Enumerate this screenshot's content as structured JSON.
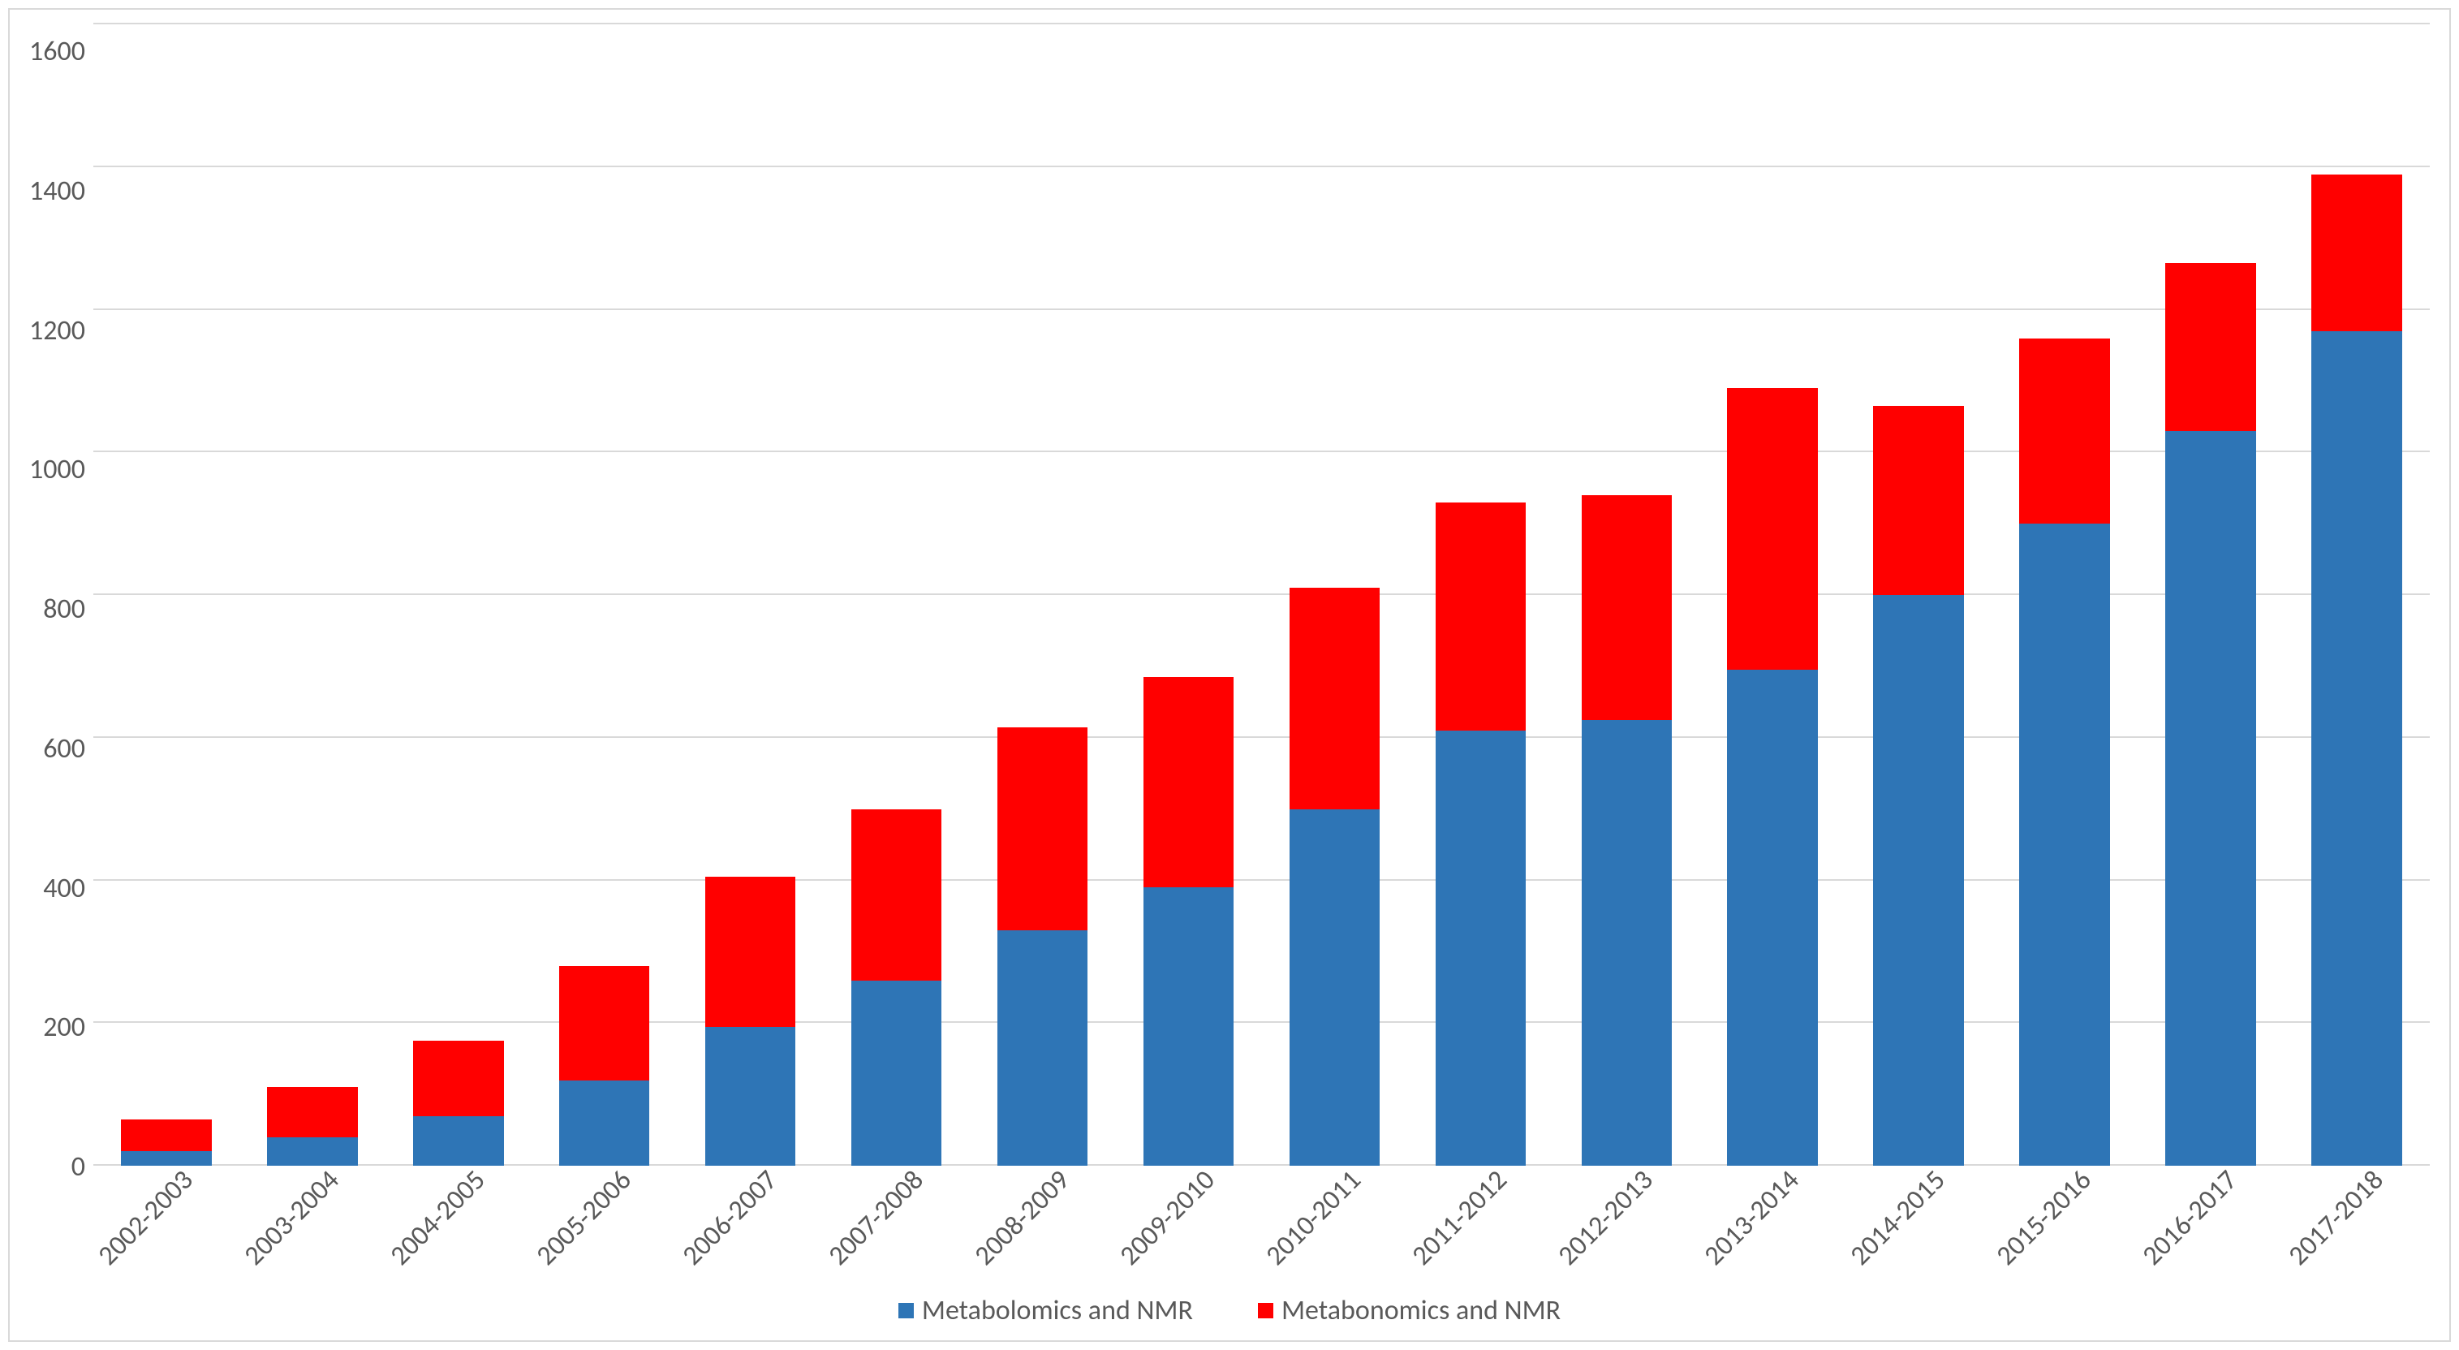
{
  "chart": {
    "type": "bar-stacked",
    "categories": [
      "2002-2003",
      "2003-2004",
      "2004-2005",
      "2005-2006",
      "2006-2007",
      "2007-2008",
      "2008-2009",
      "2009-2010",
      "2010-2011",
      "2011-2012",
      "2012-2013",
      "2013-2014",
      "2014-2015",
      "2015-2016",
      "2016-2017",
      "2017-2018"
    ],
    "series": [
      {
        "name": "Metabolomics and NMR",
        "color": "#2e75b6",
        "values": [
          20,
          40,
          70,
          120,
          195,
          260,
          330,
          390,
          500,
          610,
          625,
          695,
          800,
          900,
          1030,
          1170
        ]
      },
      {
        "name": "Metabonomics and NMR",
        "color": "#ff0000",
        "values": [
          45,
          70,
          105,
          160,
          210,
          240,
          285,
          295,
          310,
          320,
          315,
          395,
          265,
          260,
          235,
          220
        ]
      }
    ],
    "ylim": [
      0,
      1600
    ],
    "yticks": [
      0,
      200,
      400,
      600,
      800,
      1000,
      1200,
      1400,
      1600
    ],
    "grid_color": "#d9d9d9",
    "axis_line_color": "#d9d9d9",
    "border_color": "#d9d9d9",
    "background_color": "#ffffff",
    "tick_label_color": "#595959",
    "tick_label_fontsize": 34,
    "legend_fontsize": 34,
    "legend_text_color": "#595959",
    "bar_width": 0.62,
    "aspect_ratio": "3030x1663"
  }
}
